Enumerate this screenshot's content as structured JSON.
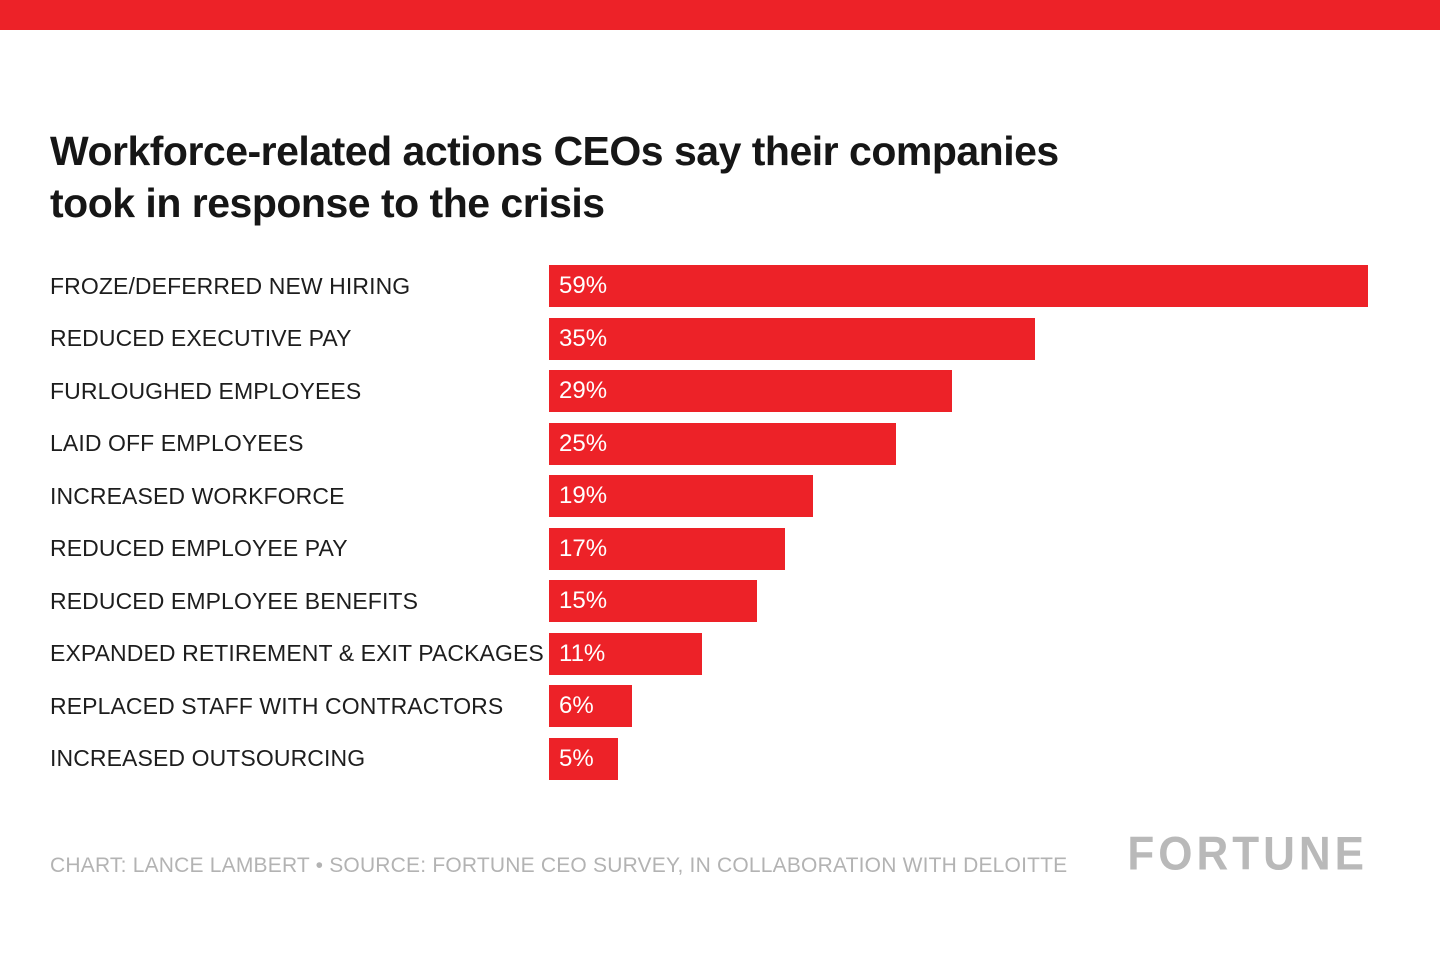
{
  "title": {
    "lines": [
      "Workforce-related actions CEOs say their companies",
      "took in response to the crisis"
    ]
  },
  "chart_data": {
    "type": "bar",
    "orientation": "horizontal",
    "title": "Workforce-related actions CEOs say their companies took in response to the crisis",
    "categories": [
      "FROZE/DEFERRED NEW HIRING",
      "REDUCED EXECUTIVE PAY",
      "FURLOUGHED EMPLOYEES",
      "LAID OFF EMPLOYEES",
      "INCREASED WORKFORCE",
      "REDUCED EMPLOYEE PAY",
      "REDUCED EMPLOYEE BENEFITS",
      "EXPANDED RETIREMENT & EXIT PACKAGES",
      "REPLACED STAFF WITH CONTRACTORS",
      "INCREASED OUTSOURCING"
    ],
    "values": [
      59,
      35,
      29,
      25,
      19,
      17,
      15,
      11,
      6,
      5
    ],
    "value_suffix": "%",
    "xlim": [
      0,
      59
    ],
    "grid": false,
    "legend": false,
    "bar_color": "#ED2228",
    "value_label_color": "#FFFFFF"
  },
  "footer": {
    "credit": "CHART: LANCE LAMBERT • SOURCE: FORTUNE CEO SURVEY, IN COLLABORATION WITH DELOITTE",
    "brand": "FORTUNE"
  },
  "colors": {
    "accent": "#ED2228",
    "text": "#161616",
    "muted": "#B3B3B3",
    "background": "#FFFFFF"
  }
}
